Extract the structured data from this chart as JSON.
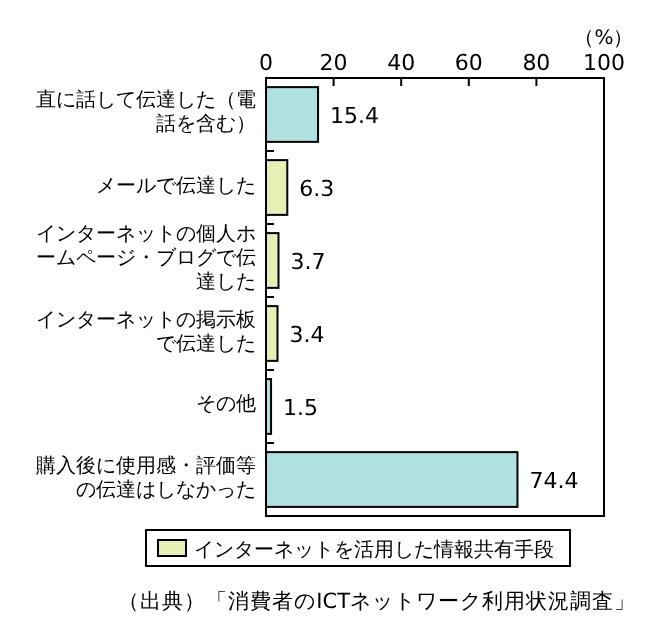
{
  "chart_data": {
    "type": "bar",
    "orientation": "horizontal",
    "categories": [
      "直に話して伝達した（電話を含む）",
      "メールで伝達した",
      "インターネットの個人ホームページ・ブログで伝達した",
      "インターネットの掲示板で伝達した",
      "その他",
      "購入後に使用感・評価等の伝達はしなかった"
    ],
    "series": [
      {
        "name": "インターネットを活用した情報共有手段",
        "color": "#e6f0b4",
        "values": [
          null,
          6.3,
          3.7,
          3.4,
          null,
          null
        ]
      },
      {
        "color": "#b0e0e0",
        "values": [
          15.4,
          null,
          null,
          null,
          1.5,
          74.4
        ]
      }
    ],
    "xlim": [
      0,
      100
    ],
    "xticks": [
      0,
      20,
      40,
      60,
      80,
      100
    ],
    "xlabel": "（%）",
    "data_labels": true,
    "legend": "bottom",
    "grid": false,
    "annotations": [
      "（出典）「消費者のICTネットワーク利用状況調査」"
    ]
  }
}
